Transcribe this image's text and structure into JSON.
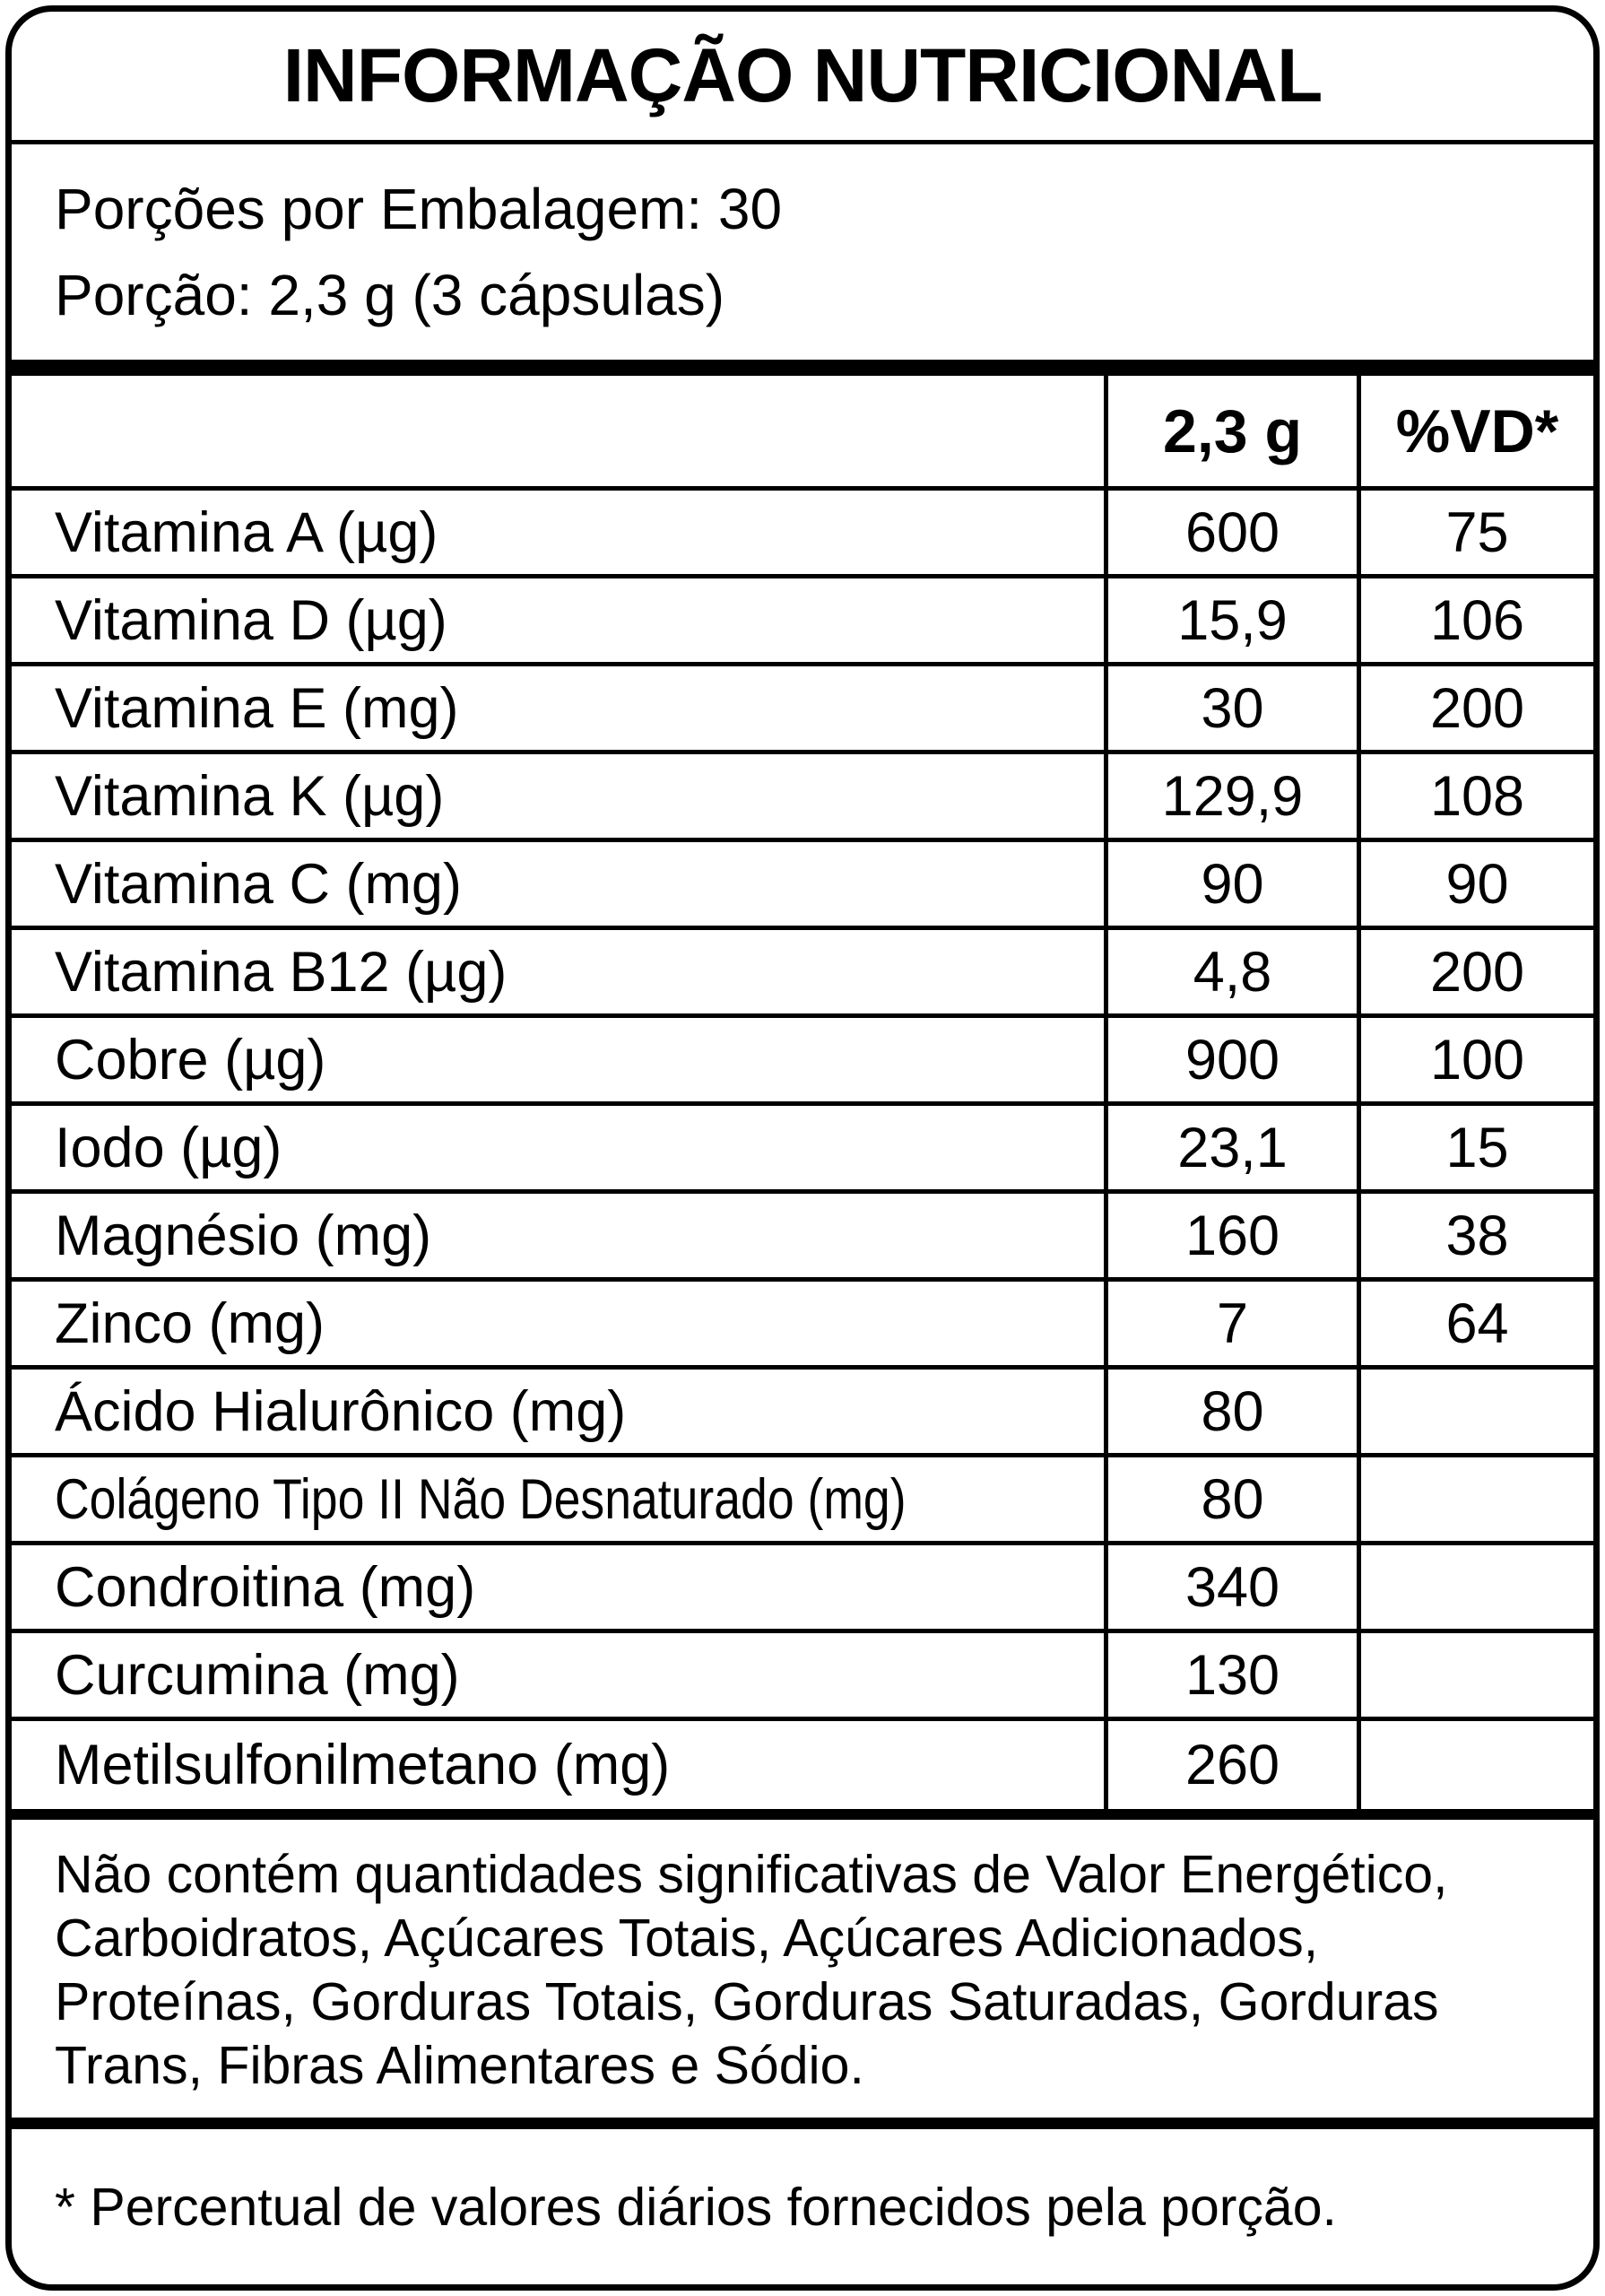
{
  "label": {
    "title": "INFORMAÇÃO NUTRICIONAL",
    "servings_per_package": "Porções por Embalagem: 30",
    "serving_size": "Porção: 2,3 g (3 cápsulas)",
    "columns": {
      "amount": "2,3 g",
      "daily_value": "%VD*"
    },
    "rows": [
      {
        "name": "Vitamina A (µg)",
        "amount": "600",
        "dv": "75"
      },
      {
        "name": "Vitamina D (µg)",
        "amount": "15,9",
        "dv": "106"
      },
      {
        "name": "Vitamina E (mg)",
        "amount": "30",
        "dv": "200"
      },
      {
        "name": "Vitamina K (µg)",
        "amount": "129,9",
        "dv": "108"
      },
      {
        "name": "Vitamina C (mg)",
        "amount": "90",
        "dv": "90"
      },
      {
        "name": "Vitamina B12 (µg)",
        "amount": "4,8",
        "dv": "200"
      },
      {
        "name": "Cobre (µg)",
        "amount": "900",
        "dv": "100"
      },
      {
        "name": "Iodo (µg)",
        "amount": "23,1",
        "dv": "15"
      },
      {
        "name": "Magnésio (mg)",
        "amount": "160",
        "dv": "38"
      },
      {
        "name": "Zinco (mg)",
        "amount": "7",
        "dv": "64"
      },
      {
        "name": "Ácido Hialurônico (mg)",
        "amount": "80",
        "dv": ""
      },
      {
        "name": "Colágeno Tipo II Não Desnaturado (mg)",
        "amount": "80",
        "dv": ""
      },
      {
        "name": "Condroitina (mg)",
        "amount": "340",
        "dv": ""
      },
      {
        "name": "Curcumina (mg)",
        "amount": "130",
        "dv": ""
      },
      {
        "name": "Metilsulfonilmetano (mg)",
        "amount": "260",
        "dv": ""
      }
    ],
    "disclaimer": "Não contém quantidades significativas de Valor Energético, Carboidratos, Açúcares Totais, Açúcares Adicionados, Proteínas, Gorduras Totais, Gorduras Saturadas, Gorduras Trans, Fibras Alimentares e Sódio.",
    "footnote": "* Percentual de valores diários fornecidos pela porção.",
    "colors": {
      "border": "#000000",
      "text": "#000000",
      "background": "#ffffff"
    }
  }
}
